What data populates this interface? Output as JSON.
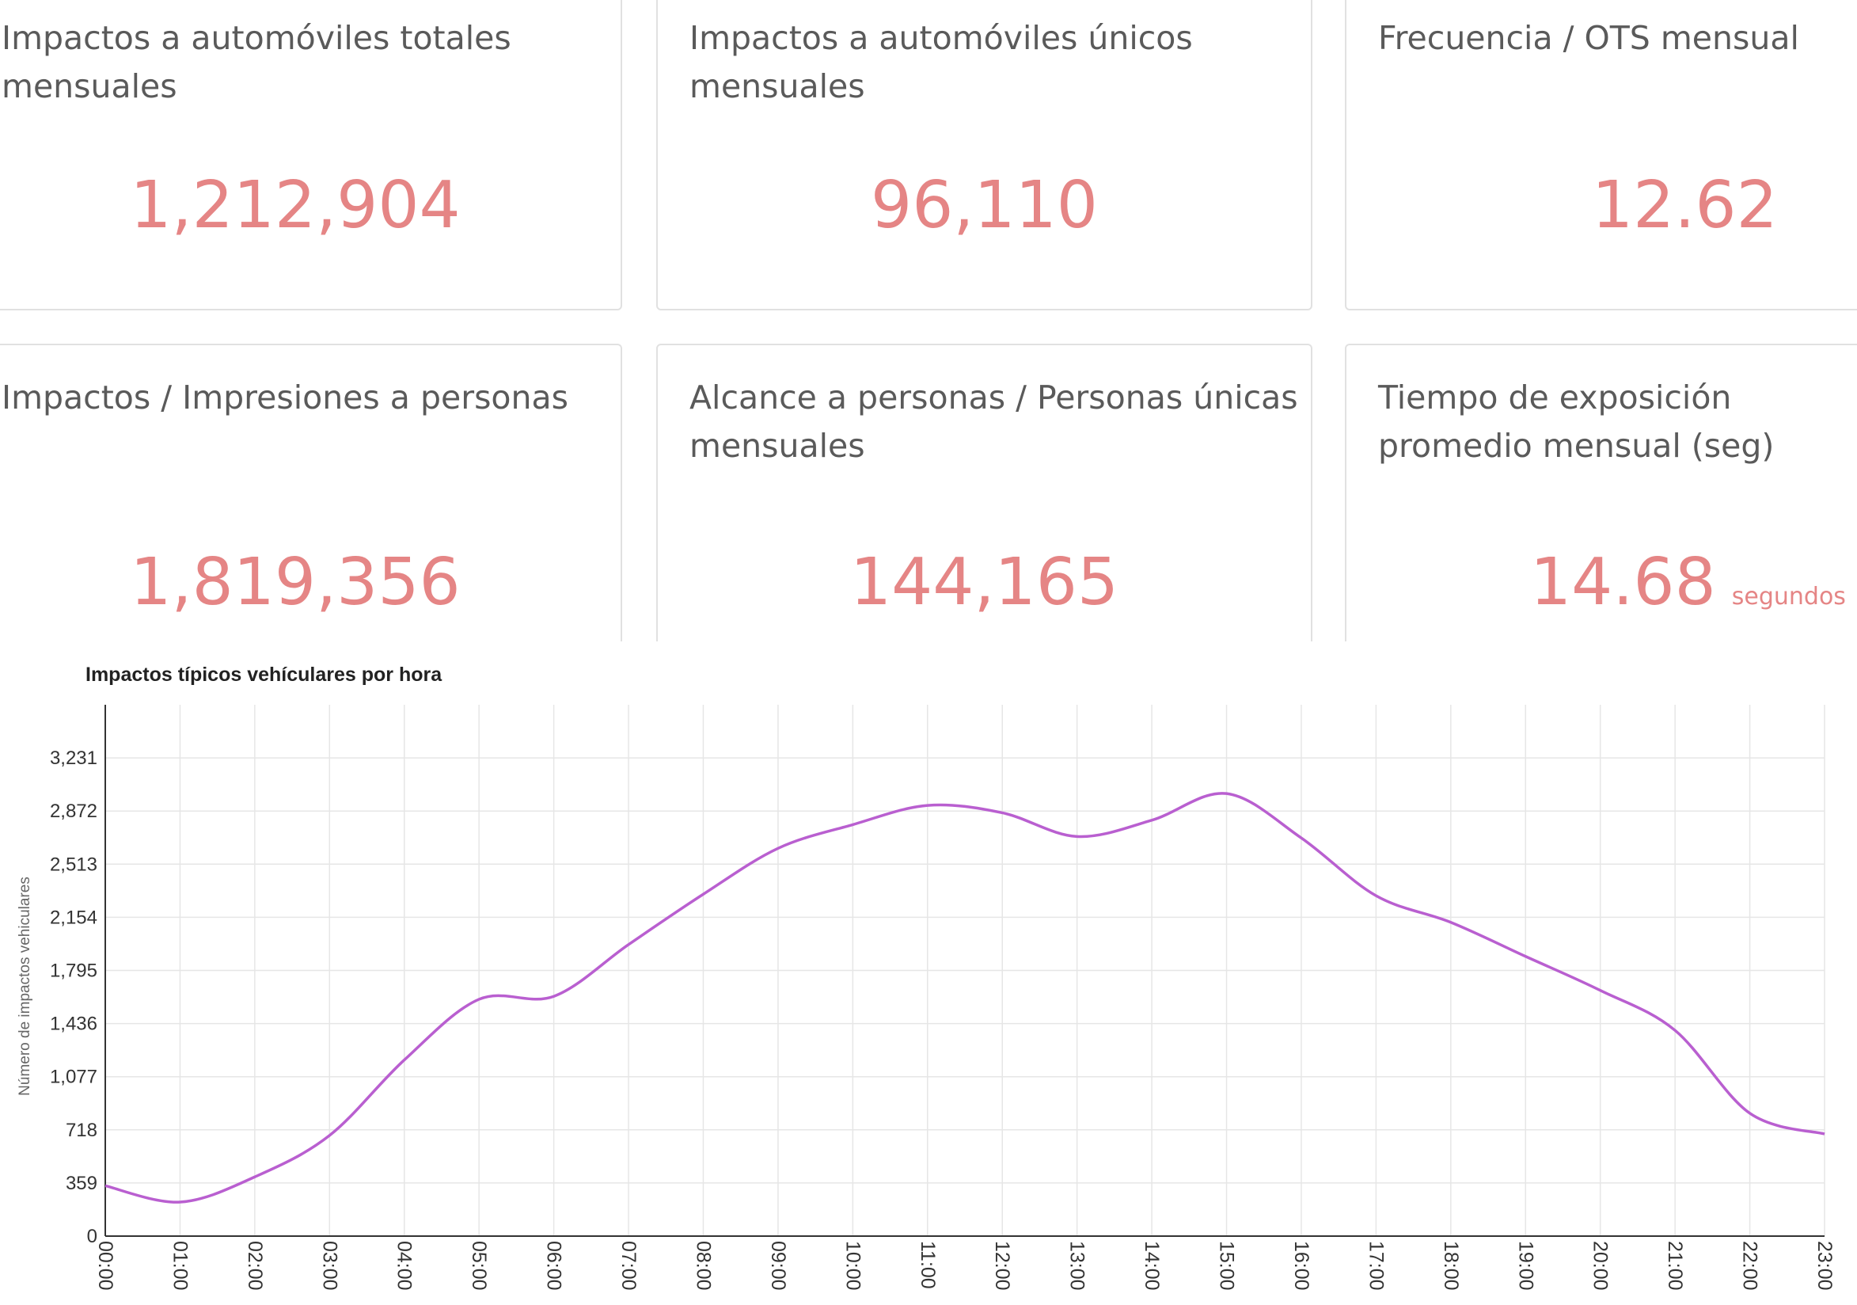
{
  "cards": [
    {
      "id": "c1",
      "title": "Impactos a automóviles totales mensuales",
      "value": "1,212,904"
    },
    {
      "id": "c2",
      "title": "Impactos a automóviles únicos mensuales",
      "value": "96,110"
    },
    {
      "id": "c3",
      "title": "Frecuencia / OTS mensual",
      "value": "12.62"
    },
    {
      "id": "c4",
      "title": "Impactos / Impresiones a personas",
      "value": "1,819,356"
    },
    {
      "id": "c5",
      "title": "Alcance a personas / Personas únicas mensuales",
      "value": "144,165"
    },
    {
      "id": "c6",
      "title": "Tiempo de exposición promedio mensual (seg)",
      "value": "14.68",
      "unit": "segundos"
    }
  ],
  "colors": {
    "accent": "#e58585",
    "line": "#b95fd0",
    "grid": "#e6e6e6"
  },
  "chart_data": {
    "type": "line",
    "title": "Impactos típicos vehículares por hora",
    "ylabel": "Número de impactos vehiculares",
    "xlabel": "",
    "ylim": [
      0,
      3590
    ],
    "yticks": [
      0,
      359,
      718,
      1077,
      1436,
      1795,
      2154,
      2513,
      2872,
      3231
    ],
    "ytick_labels": [
      "0",
      "359",
      "718",
      "1,077",
      "1,436",
      "1,795",
      "2,154",
      "2,513",
      "2,872",
      "3,231"
    ],
    "x": [
      "00:00",
      "01:00",
      "02:00",
      "03:00",
      "04:00",
      "05:00",
      "06:00",
      "07:00",
      "08:00",
      "09:00",
      "10:00",
      "11:00",
      "12:00",
      "13:00",
      "14:00",
      "15:00",
      "16:00",
      "17:00",
      "18:00",
      "19:00",
      "20:00",
      "21:00",
      "22:00",
      "23:00"
    ],
    "grid": true,
    "series": [
      {
        "name": "Impactos típicos vehículares por hora",
        "values": [
          340,
          230,
          400,
          680,
          1190,
          1600,
          1620,
          1970,
          2310,
          2620,
          2780,
          2910,
          2860,
          2700,
          2810,
          2990,
          2690,
          2300,
          2120,
          1890,
          1660,
          1390,
          830,
          690
        ]
      }
    ]
  }
}
